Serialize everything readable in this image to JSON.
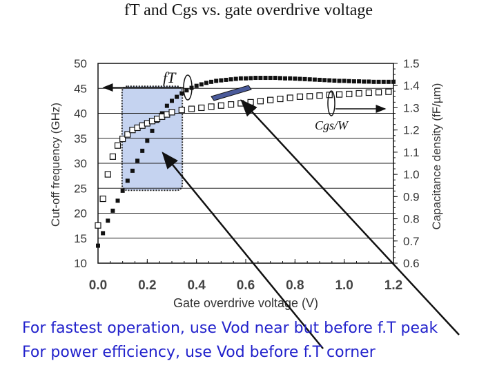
{
  "title": "fT and Cgs vs. gate overdrive voltage",
  "captions": [
    "For fastest operation, use Vod near but before f.T peak",
    "For power efficiency, use Vod before f.T corner"
  ],
  "colors": {
    "caption": "#2222cc",
    "highlight_fill": "#c5d3f0",
    "highlight_border": "#222222",
    "grid": "#222222",
    "bar_fill": "#4a5a9a"
  },
  "chart_data": {
    "type": "scatter",
    "title": "fT and Cgs vs. gate overdrive voltage",
    "xlabel": "Gate overdrive voltage (V)",
    "ylabel_left": "Cut-off frequency (GHz)",
    "ylabel_right": "Capacitance density (fF/µm)",
    "xlim": [
      0.0,
      1.2
    ],
    "ylim_left": [
      10,
      50
    ],
    "ylim_right": [
      0.6,
      1.5
    ],
    "x_ticks": [
      "0.0",
      "0.2",
      "0.4",
      "0.6",
      "0.8",
      "1.0",
      "1.2"
    ],
    "y_ticks_left": [
      "10",
      "15",
      "20",
      "25",
      "30",
      "35",
      "40",
      "45",
      "50"
    ],
    "y_ticks_right": [
      "0.6",
      "0.7",
      "0.8",
      "0.9",
      "1.0",
      "1.1",
      "1.2",
      "1.3",
      "1.4",
      "1.5"
    ],
    "grid": true,
    "series": [
      {
        "name": "fT",
        "label": "fT",
        "axis": "left",
        "marker": "filled-square",
        "x": [
          0.0,
          0.02,
          0.04,
          0.06,
          0.08,
          0.1,
          0.12,
          0.14,
          0.16,
          0.18,
          0.2,
          0.22,
          0.24,
          0.26,
          0.28,
          0.3,
          0.32,
          0.34,
          0.36,
          0.38,
          0.4,
          0.42,
          0.44,
          0.46,
          0.48,
          0.5,
          0.52,
          0.54,
          0.56,
          0.58,
          0.6,
          0.62,
          0.64,
          0.66,
          0.68,
          0.7,
          0.72,
          0.74,
          0.76,
          0.78,
          0.8,
          0.82,
          0.84,
          0.86,
          0.88,
          0.9,
          0.92,
          0.94,
          0.96,
          0.98,
          1.0,
          1.02,
          1.04,
          1.06,
          1.08,
          1.1,
          1.12,
          1.14,
          1.16,
          1.18,
          1.2
        ],
        "y": [
          13.5,
          16.0,
          18.5,
          20.5,
          22.5,
          24.5,
          26.5,
          28.5,
          30.5,
          32.5,
          34.5,
          36.5,
          38.5,
          40.0,
          41.5,
          42.5,
          43.3,
          44.0,
          44.6,
          45.1,
          45.5,
          45.8,
          46.1,
          46.3,
          46.5,
          46.6,
          46.7,
          46.8,
          46.9,
          47.0,
          47.0,
          47.05,
          47.1,
          47.1,
          47.1,
          47.1,
          47.1,
          47.05,
          47.0,
          47.0,
          46.95,
          46.9,
          46.85,
          46.8,
          46.75,
          46.7,
          46.65,
          46.6,
          46.55,
          46.5,
          46.5,
          46.45,
          46.4,
          46.4,
          46.35,
          46.35,
          46.3,
          46.3,
          46.3,
          46.3,
          46.3
        ]
      },
      {
        "name": "Cgs/W",
        "label": "Cgs/W",
        "axis": "right",
        "marker": "open-square",
        "x": [
          0.0,
          0.02,
          0.04,
          0.06,
          0.08,
          0.1,
          0.12,
          0.14,
          0.16,
          0.18,
          0.2,
          0.22,
          0.24,
          0.26,
          0.28,
          0.3,
          0.34,
          0.38,
          0.42,
          0.46,
          0.5,
          0.54,
          0.58,
          0.62,
          0.66,
          0.7,
          0.74,
          0.78,
          0.82,
          0.86,
          0.9,
          0.94,
          0.98,
          1.02,
          1.06,
          1.1,
          1.14,
          1.18
        ],
        "y": [
          0.77,
          0.89,
          1.0,
          1.08,
          1.13,
          1.16,
          1.18,
          1.2,
          1.21,
          1.22,
          1.23,
          1.24,
          1.25,
          1.26,
          1.27,
          1.28,
          1.29,
          1.295,
          1.3,
          1.305,
          1.31,
          1.315,
          1.32,
          1.325,
          1.33,
          1.335,
          1.34,
          1.345,
          1.35,
          1.352,
          1.355,
          1.358,
          1.36,
          1.362,
          1.365,
          1.368,
          1.37,
          1.372
        ]
      }
    ],
    "annotations": [
      {
        "text": "fT",
        "near": "fT curve, left arrow to left axis"
      },
      {
        "text": "Cgs/W",
        "near": "Cgs/W curve, right arrow to right axis"
      },
      {
        "type": "highlight-region",
        "x_range": [
          0.12,
          0.32
        ],
        "y_range_left": [
          25,
          45
        ]
      }
    ]
  }
}
